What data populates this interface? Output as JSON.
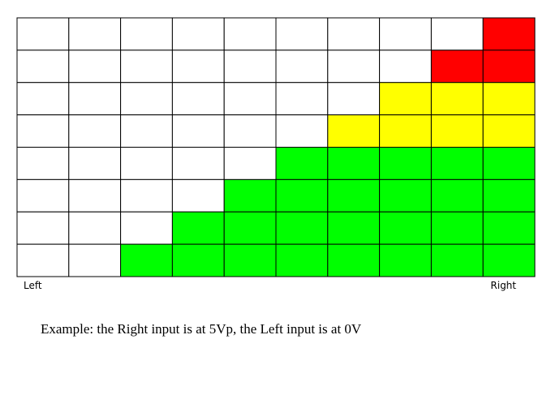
{
  "labels": {
    "left": "Left",
    "right": "Right"
  },
  "caption": "Example: the Right input is at 5Vp, the Left input is at 0V"
}
